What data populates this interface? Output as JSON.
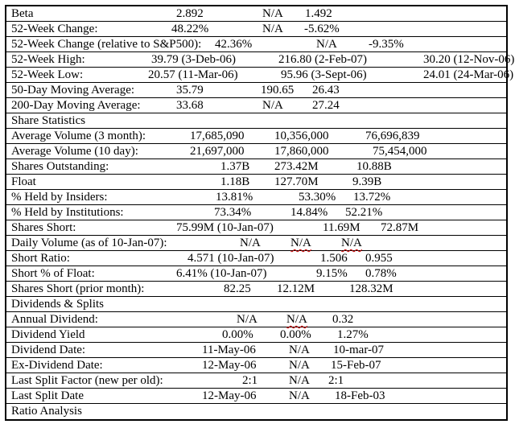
{
  "colors": {
    "text": "#000000",
    "border": "#000000",
    "spellcheck_underline": "#cc0000"
  },
  "table": {
    "rows": [
      {
        "label": "Beta",
        "values": [
          "2.892",
          "N/A",
          "1.492"
        ]
      },
      {
        "label": "52-Week Change:",
        "values": [
          "48.22%",
          "N/A",
          "-5.62%"
        ]
      },
      {
        "label": "52-Week Change (relative to S&P500):",
        "values": [
          "42.36%",
          "N/A",
          "-9.35%"
        ]
      },
      {
        "label": "52-Week High:",
        "values": [
          "39.79 (3-Deb-06)",
          "216.80 (2-Feb-07)",
          "30.20 (12-Nov-06)"
        ]
      },
      {
        "label": "52-Week Low:",
        "values": [
          "20.57 (11-Mar-06)",
          "95.96 (3-Sept-06)",
          "24.01 (24-Mar-06)"
        ]
      },
      {
        "label": "50-Day Moving Average:",
        "values": [
          "35.79",
          "190.65",
          "26.43"
        ]
      },
      {
        "label": "200-Day Moving Average:",
        "values": [
          "33.68",
          "N/A",
          "27.24"
        ]
      },
      {
        "label": "Share Statistics"
      },
      {
        "label": "Average Volume (3 month):",
        "values": [
          "17,685,090",
          "10,356,000",
          "76,696,839"
        ]
      },
      {
        "label": "Average Volume (10 day):",
        "values": [
          "21,697,000",
          "17,860,000",
          "75,454,000"
        ]
      },
      {
        "label": "Shares Outstanding:",
        "values": [
          "1.37B",
          "273.42M",
          "10.88B"
        ]
      },
      {
        "label": "Float",
        "values": [
          "1.18B",
          "127.70M",
          "9.39B"
        ]
      },
      {
        "label": "% Held by Insiders:",
        "values": [
          "13.81%",
          "53.30%",
          "13.72%"
        ]
      },
      {
        "label": "% Held by Institutions:",
        "values": [
          "73.34%",
          "14.84%",
          "52.21%"
        ]
      },
      {
        "label": "Shares Short:",
        "values": [
          "75.99M (10-Jan-07)",
          "11.69M",
          "72.87M"
        ]
      },
      {
        "label": "Daily Volume (as of 10-Jan-07):",
        "values": [
          "N/A",
          "N/A",
          "N/A"
        ]
      },
      {
        "label": "Short Ratio:",
        "values": [
          "4.571 (10-Jan-07)",
          "1.506",
          "0.955"
        ]
      },
      {
        "label": "Short % of Float:",
        "values": [
          "6.41% (10-Jan-07)",
          "9.15%",
          "0.78%"
        ]
      },
      {
        "label": "Shares Short (prior month):",
        "values": [
          "82.25",
          "12.12M",
          "128.32M"
        ]
      },
      {
        "label": "Dividends & Splits"
      },
      {
        "label": "Annual Dividend:",
        "values": [
          "N/A",
          "N/A",
          "0.32"
        ]
      },
      {
        "label": "Dividend Yield",
        "values": [
          "0.00%",
          "0.00%",
          "1.27%"
        ]
      },
      {
        "label": "Dividend Date:",
        "values": [
          "11-May-06",
          "N/A",
          "10-mar-07"
        ]
      },
      {
        "label": "Ex-Dividend Date:",
        "values": [
          "12-May-06",
          "N/A",
          "15-Feb-07"
        ]
      },
      {
        "label": "Last Split Factor (new per old):",
        "values": [
          "2:1",
          "N/A",
          "2:1"
        ]
      },
      {
        "label": "Last Split Date",
        "values": [
          "12-May-06",
          "N/A",
          "18-Feb-03"
        ]
      },
      {
        "label": "Ratio Analysis"
      }
    ]
  }
}
